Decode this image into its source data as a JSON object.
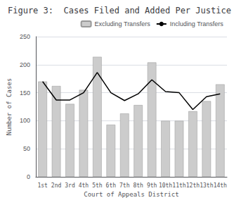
{
  "chart_data": {
    "type": "bar",
    "title": "Figure 3:  Cases Filed and Added Per Justice",
    "xlabel": "Court of Appeals District",
    "ylabel": "Number of Cases",
    "categories": [
      "1st",
      "2nd",
      "3rd",
      "4th",
      "5th",
      "6th",
      "7th",
      "8th",
      "9th",
      "10th",
      "11th",
      "12th",
      "13th",
      "14th"
    ],
    "series": [
      {
        "name": "Excluding Transfers",
        "type": "bar",
        "color": "#cccccc",
        "values": [
          170,
          162,
          130,
          155,
          214,
          93,
          113,
          128,
          204,
          100,
          100,
          117,
          135,
          165
        ]
      },
      {
        "name": "Including Transfers",
        "type": "line",
        "color": "#000000",
        "values": [
          170,
          137,
          137,
          150,
          186,
          150,
          136,
          148,
          173,
          152,
          150,
          120,
          143,
          148
        ]
      }
    ],
    "ylim": [
      0,
      250
    ],
    "yticks": [
      0,
      50,
      100,
      150,
      200,
      250
    ],
    "grid": true,
    "legend": "upper right"
  }
}
